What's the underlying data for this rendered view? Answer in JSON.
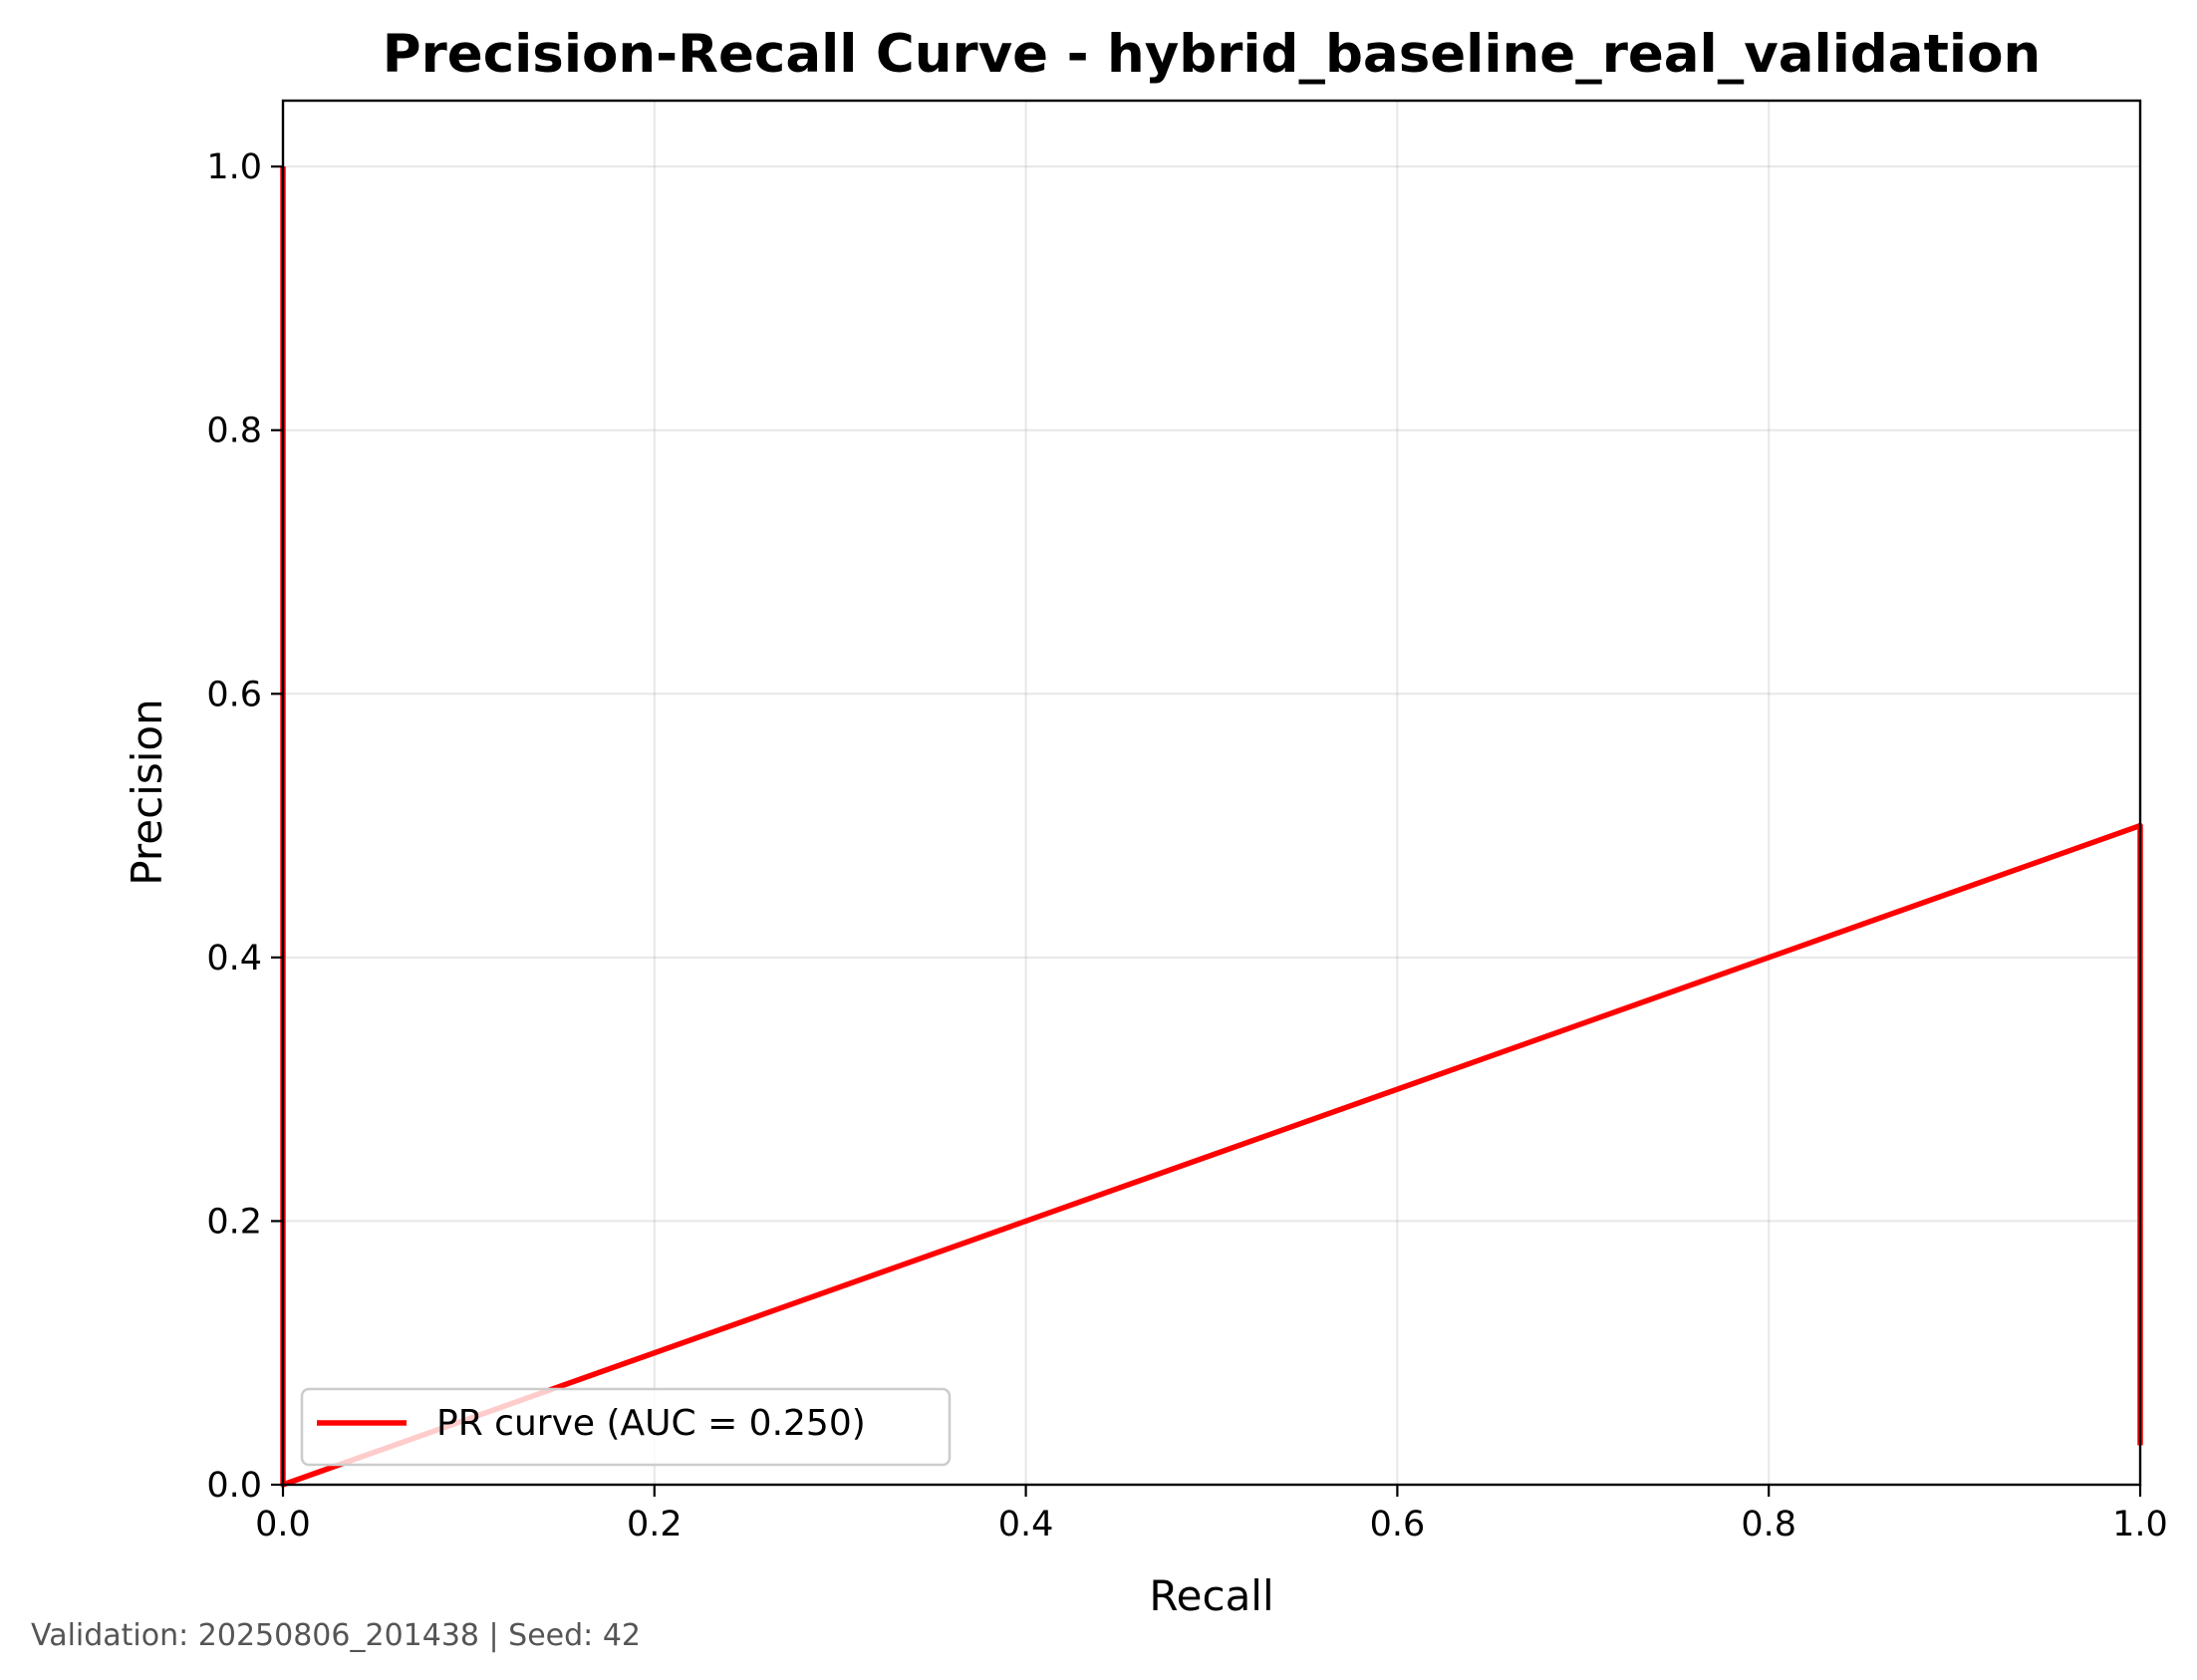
{
  "chart_data": {
    "type": "line",
    "title": "Precision-Recall Curve - hybrid_baseline_real_validation",
    "xlabel": "Recall",
    "ylabel": "Precision",
    "xlim": [
      0.0,
      1.0
    ],
    "ylim": [
      0.0,
      1.05
    ],
    "xticks": [
      "0.0",
      "0.2",
      "0.4",
      "0.6",
      "0.8",
      "1.0"
    ],
    "yticks": [
      "0.0",
      "0.2",
      "0.4",
      "0.6",
      "0.8",
      "1.0"
    ],
    "grid": true,
    "legend_position": "lower-left",
    "series": [
      {
        "name": "PR curve (AUC = 0.250)",
        "color": "#ff0000",
        "x": [
          0.0,
          0.0,
          1.0,
          1.0
        ],
        "y": [
          1.0,
          0.0,
          0.5,
          0.03
        ]
      }
    ]
  },
  "footer": "Validation: 20250806_201438 | Seed: 42"
}
